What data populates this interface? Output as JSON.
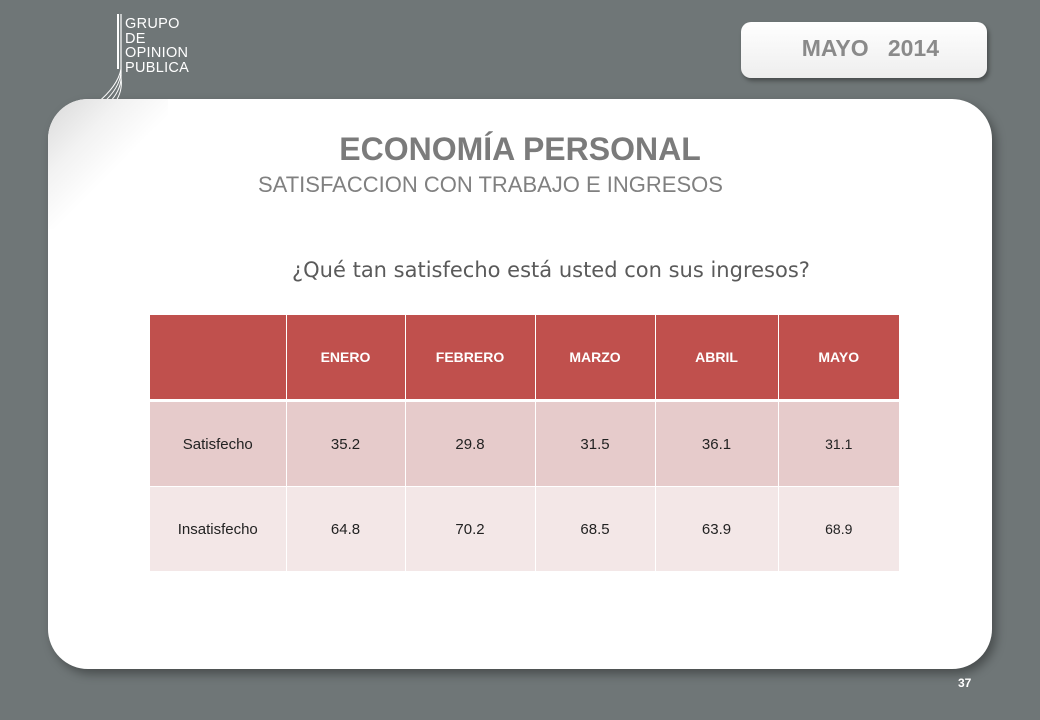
{
  "logo": {
    "lines": [
      "GRUPO",
      "DE",
      "OPINION",
      "PUBLICA"
    ]
  },
  "date_tab": "MAYO   2014",
  "title": "ECONOMÍA PERSONAL",
  "subtitle": "SATISFACCION CON TRABAJO E INGRESOS",
  "question": "¿Qué tan satisfecho está usted con sus ingresos?",
  "table": {
    "headers": [
      "",
      "ENERO",
      "FEBRERO",
      "MARZO",
      "ABRIL",
      "MAYO"
    ],
    "rows": [
      {
        "label": "Satisfecho",
        "values": [
          "35.2",
          "29.8",
          "31.5",
          "36.1",
          "31.1"
        ]
      },
      {
        "label": "Insatisfecho",
        "values": [
          "64.8",
          "70.2",
          "68.5",
          "63.9",
          "68.9"
        ]
      }
    ]
  },
  "page_number": "37",
  "colors": {
    "background": "#6f7677",
    "header_red": "#c0504d",
    "row1": "#e6cbcb",
    "row2": "#f3e7e7"
  }
}
